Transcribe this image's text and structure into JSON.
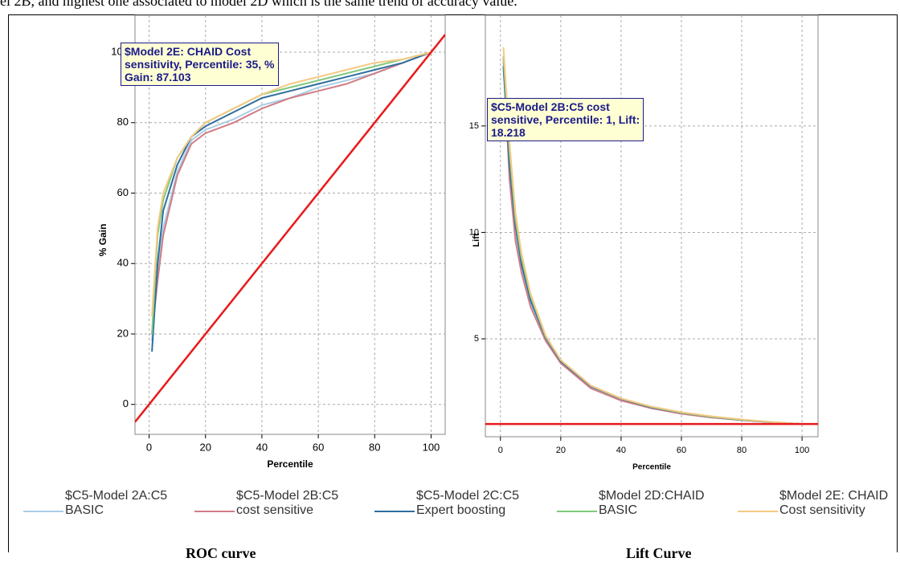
{
  "header_text": "el 2B, and highest one associated to model 2D which is the same trend of accuracy value.",
  "chart_data": [
    {
      "type": "line",
      "caption": "ROC curve",
      "xlabel": "Percentile",
      "ylabel": "% Gain",
      "xlim": [
        -5,
        105
      ],
      "ylim": [
        -8.5,
        110.5
      ],
      "xticks": [
        0,
        20,
        40,
        60,
        80,
        100
      ],
      "yticks": [
        0,
        20,
        40,
        60,
        80,
        100
      ],
      "grid": true,
      "x": [
        1,
        3,
        5,
        10,
        15,
        20,
        30,
        40,
        50,
        60,
        70,
        80,
        90,
        100
      ],
      "series": [
        {
          "name": "$C5-Model 2A:C5 BASIC",
          "color": "#a9cde6",
          "values": [
            18,
            38,
            50,
            66,
            75,
            78,
            81,
            85,
            87,
            90,
            92,
            94,
            97,
            100
          ]
        },
        {
          "name": "$C5-Model 2B:C5 cost sensitive",
          "color": "#d07d86",
          "values": [
            20,
            35,
            48,
            65,
            74,
            77,
            80,
            84,
            87,
            89,
            91,
            94,
            97,
            100
          ]
        },
        {
          "name": "$C5-Model 2C:C5 Expert boosting",
          "color": "#2f6e9e",
          "values": [
            15,
            40,
            55,
            68,
            76,
            79,
            83,
            87,
            89,
            91,
            93,
            95,
            97,
            100
          ]
        },
        {
          "name": "$Model 2D:CHAID BASIC",
          "color": "#7fc97c",
          "values": [
            20,
            48,
            58,
            70,
            76,
            80,
            84,
            88,
            90,
            92,
            94,
            96,
            98,
            100
          ]
        },
        {
          "name": "$Model 2E: CHAID Cost sensitivity",
          "color": "#f4c981",
          "values": [
            25,
            50,
            60,
            70,
            76,
            80,
            84,
            88,
            91,
            93,
            95,
            97,
            98,
            100
          ]
        }
      ],
      "reference_line": {
        "color": "#e8191b",
        "x": [
          -5,
          105
        ],
        "values": [
          -5,
          105
        ]
      },
      "annotation": [
        "$Model 2E: CHAID Cost",
        "sensitivity, Percentile: 35, %",
        "Gain: 87.103"
      ]
    },
    {
      "type": "line",
      "caption": "Lift Curve",
      "xlabel": "Percentile",
      "ylabel": "Lift",
      "xlim": [
        -5,
        105.3
      ],
      "ylim": [
        0.4,
        20.2
      ],
      "xticks": [
        0,
        20,
        40,
        60,
        80,
        100
      ],
      "yticks": [
        5,
        10,
        15
      ],
      "grid": true,
      "x": [
        1,
        3,
        5,
        7,
        10,
        15,
        20,
        30,
        40,
        50,
        60,
        70,
        80,
        90,
        100
      ],
      "series": [
        {
          "color": "#a9cde6",
          "values": [
            18.0,
            12.8,
            10.0,
            8.3,
            6.6,
            5.0,
            3.9,
            2.7,
            2.1,
            1.75,
            1.5,
            1.31,
            1.18,
            1.08,
            1.0
          ]
        },
        {
          "color": "#d07d86",
          "values": [
            18.218,
            12.5,
            9.6,
            8.1,
            6.5,
            4.9,
            3.85,
            2.67,
            2.1,
            1.74,
            1.48,
            1.3,
            1.18,
            1.08,
            1.0
          ]
        },
        {
          "color": "#2f6e9e",
          "values": [
            17.8,
            13.2,
            10.3,
            8.5,
            6.8,
            5.05,
            3.95,
            2.77,
            2.18,
            1.78,
            1.52,
            1.33,
            1.19,
            1.08,
            1.0
          ]
        },
        {
          "color": "#7fc97c",
          "values": [
            18.3,
            13.8,
            10.6,
            8.8,
            7.0,
            5.1,
            4.0,
            2.8,
            2.2,
            1.8,
            1.53,
            1.34,
            1.2,
            1.09,
            1.0
          ]
        },
        {
          "color": "#f4c981",
          "values": [
            18.7,
            14.2,
            10.9,
            9.0,
            7.1,
            5.15,
            4.0,
            2.8,
            2.2,
            1.82,
            1.55,
            1.36,
            1.21,
            1.09,
            1.0
          ]
        }
      ],
      "reference_line": {
        "color": "#e8191b",
        "x": [
          -5,
          105.3
        ],
        "values": [
          1,
          1
        ]
      },
      "annotation": [
        "$C5-Model 2B:C5 cost",
        "sensitive, Percentile: 1, Lift:",
        "18.218"
      ]
    }
  ]
}
